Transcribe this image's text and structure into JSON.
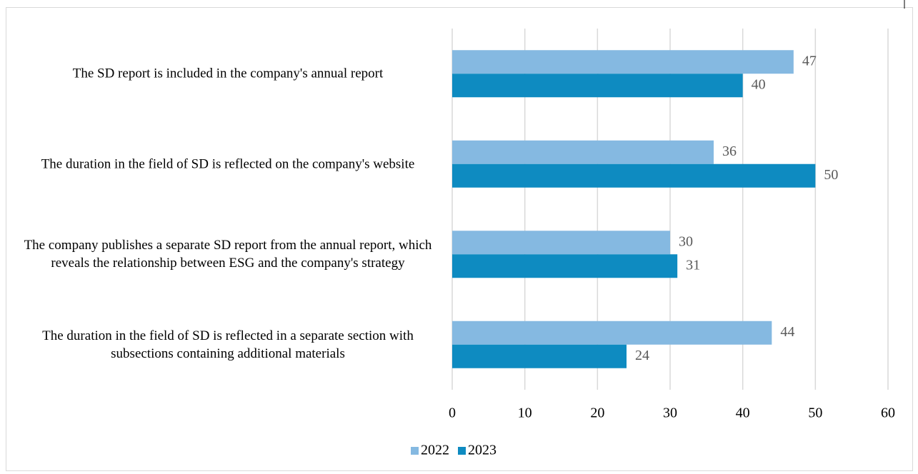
{
  "chart_data": {
    "type": "barh",
    "categories": [
      "The SD report is included in the company's annual report",
      "The duration in the field of SD is reflected on the company's website",
      "The company publishes a separate SD report from the annual report, which reveals the relationship between ESG and the company's strategy",
      "The duration in the field of SD is reflected in a separate section with subsections containing additional materials"
    ],
    "series": [
      {
        "name": "2022",
        "color": "#85b9e1",
        "values": [
          47,
          36,
          30,
          44
        ]
      },
      {
        "name": "2023",
        "color": "#0e8bc1",
        "values": [
          40,
          50,
          31,
          24
        ]
      }
    ],
    "xlim": [
      0,
      60
    ],
    "xticks": [
      0,
      10,
      20,
      30,
      40,
      50,
      60
    ],
    "grid": true,
    "legend": "bottom"
  }
}
